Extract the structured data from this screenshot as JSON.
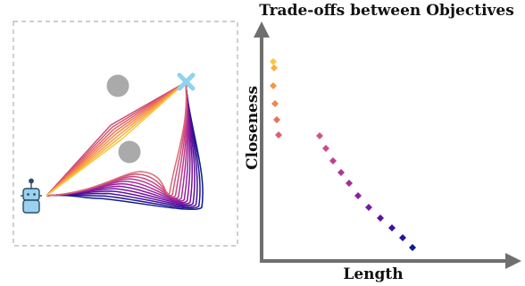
{
  "chart_data": [
    {
      "type": "diagram",
      "panel": "path-planning",
      "start": "robot",
      "goal": "cross",
      "obstacles": 2,
      "path_families": [
        {
          "route": "upper",
          "count": 8,
          "colors": [
            "#cc4b7a",
            "#d8566e",
            "#e36562",
            "#ec7656",
            "#f3884b",
            "#f89b40",
            "#fbb03a",
            "#f9c93a"
          ]
        },
        {
          "route": "lower",
          "count": 12,
          "colors": [
            "#0d1b8a",
            "#2a1593",
            "#44119a",
            "#5c0f9e",
            "#7212a0",
            "#86199f",
            "#98229c",
            "#a92d97",
            "#b83a90",
            "#c54886",
            "#d0577c",
            "#dc6872"
          ]
        }
      ],
      "colors": {
        "box_border": "#b0b0b0",
        "obstacle": "#aaaaaa",
        "goal": "#8fd3ee",
        "robot_body": "#9ad1ee",
        "robot_outline": "#2c4d63"
      }
    },
    {
      "type": "scatter",
      "title": "Trade-offs between Objectives",
      "xlabel": "Length",
      "ylabel": "Closeness",
      "x_ticks_shown": false,
      "y_ticks_shown": false,
      "grid": false,
      "marker": "diamond",
      "xlim": [
        0,
        280
      ],
      "ylim": [
        0,
        260
      ],
      "points": [
        {
          "x": 13,
          "y": 223,
          "color": "#f9c93a"
        },
        {
          "x": 14,
          "y": 216,
          "color": "#fbb03a"
        },
        {
          "x": 13,
          "y": 196,
          "color": "#f8963f"
        },
        {
          "x": 15,
          "y": 176,
          "color": "#f2834c"
        },
        {
          "x": 17,
          "y": 158,
          "color": "#e9715a"
        },
        {
          "x": 19,
          "y": 141,
          "color": "#dc6170"
        },
        {
          "x": 65,
          "y": 140,
          "color": "#d05581"
        },
        {
          "x": 72,
          "y": 126,
          "color": "#c94c8a"
        },
        {
          "x": 80,
          "y": 112,
          "color": "#bd4090"
        },
        {
          "x": 89,
          "y": 99,
          "color": "#b03796"
        },
        {
          "x": 98,
          "y": 87,
          "color": "#a02d9a"
        },
        {
          "x": 108,
          "y": 73,
          "color": "#8b209e"
        },
        {
          "x": 120,
          "y": 60,
          "color": "#761aa0"
        },
        {
          "x": 133,
          "y": 48,
          "color": "#5c119e"
        },
        {
          "x": 146,
          "y": 37,
          "color": "#420f99"
        },
        {
          "x": 158,
          "y": 26,
          "color": "#2b1392"
        },
        {
          "x": 169,
          "y": 15,
          "color": "#0d1b8a"
        }
      ],
      "colors": {
        "axis": "#6f6f6f"
      }
    }
  ]
}
